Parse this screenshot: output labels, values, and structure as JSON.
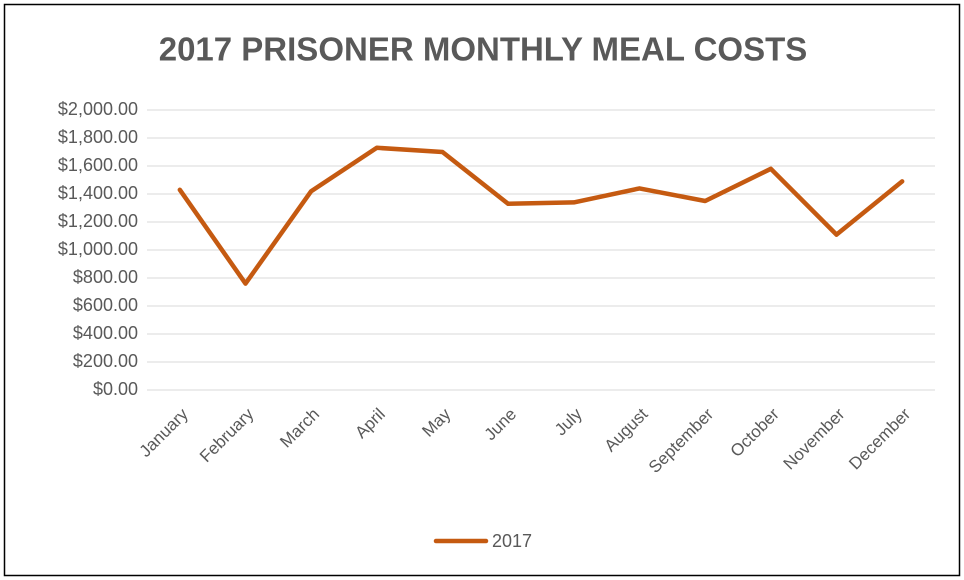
{
  "chart_data": {
    "type": "line",
    "title": "2017 PRISONER MONTHLY MEAL COSTS",
    "categories": [
      "January",
      "February",
      "March",
      "April",
      "May",
      "June",
      "July",
      "August",
      "September",
      "October",
      "November",
      "December"
    ],
    "series": [
      {
        "name": "2017",
        "color": "#c55a11",
        "values": [
          1430,
          760,
          1420,
          1730,
          1700,
          1330,
          1340,
          1440,
          1350,
          1580,
          1110,
          1490
        ]
      }
    ],
    "ylim": [
      0,
      2000
    ],
    "yticks": [
      {
        "value": 0,
        "label": "$0.00"
      },
      {
        "value": 200,
        "label": "$200.00"
      },
      {
        "value": 400,
        "label": "$400.00"
      },
      {
        "value": 600,
        "label": "$600.00"
      },
      {
        "value": 800,
        "label": "$800.00"
      },
      {
        "value": 1000,
        "label": "$1,000.00"
      },
      {
        "value": 1200,
        "label": "$1,200.00"
      },
      {
        "value": 1400,
        "label": "$1,400.00"
      },
      {
        "value": 1600,
        "label": "$1,600.00"
      },
      {
        "value": 1800,
        "label": "$1,800.00"
      },
      {
        "value": 2000,
        "label": "$2,000.00"
      }
    ],
    "grid": true,
    "legend": "bottom"
  }
}
